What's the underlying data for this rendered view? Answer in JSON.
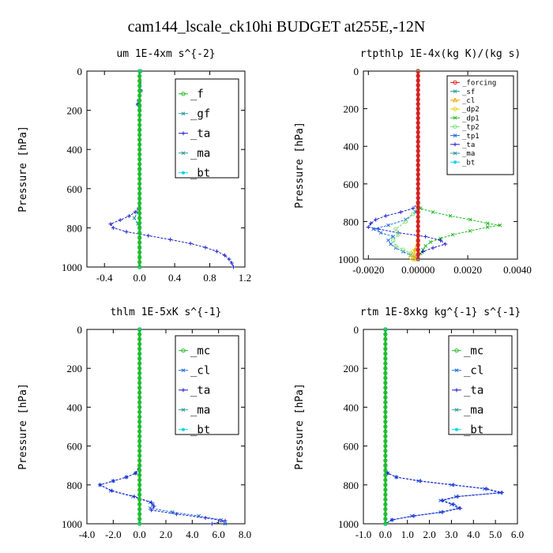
{
  "figure_title": "cam144_lscale_ck10hi  BUDGET at255E,-12N",
  "colors": {
    "green": "#22bb22",
    "teal": "#2a9a9a",
    "blue": "#1f6fe0",
    "darkblue": "#2222cc",
    "cyan": "#00d8e8",
    "red": "#e01818",
    "orange": "#f0a000",
    "yellow": "#e0d000",
    "lightgreen": "#7de07d"
  },
  "chart_data": [
    {
      "type": "line",
      "title": "um   1E-4xm s^{-2}",
      "ylabel": "Pressure [hPa]",
      "xlim": [
        -0.6,
        1.2
      ],
      "ylim": [
        0,
        1000
      ],
      "xticks": [
        -0.4,
        0.0,
        0.4,
        0.8,
        1.2
      ],
      "xtick_labels": [
        "-0.4",
        "0.0",
        "0.4",
        "0.8",
        "1.2"
      ],
      "yticks": [
        0,
        200,
        400,
        600,
        800,
        1000
      ],
      "ytick_labels": [
        "0",
        "200",
        "400",
        "600",
        "800",
        "1000"
      ],
      "legend": {
        "position": "top-right",
        "entries": [
          "_f",
          "_gf",
          "_ta",
          "_ma",
          "_bt"
        ]
      },
      "series": [
        {
          "name": "_gf",
          "color": "teal",
          "marker": "x",
          "width": 1.2,
          "y": [
            0,
            100,
            150,
            170,
            180,
            200,
            300,
            500,
            700,
            720,
            750,
            780,
            800,
            850,
            900,
            950,
            1000
          ],
          "x": [
            0.01,
            0.015,
            -0.01,
            -0.02,
            0.0,
            0.0,
            0.0,
            0.0,
            0.0,
            -0.02,
            -0.06,
            -0.02,
            0.0,
            0.0,
            0.0,
            0.0,
            0.0
          ]
        },
        {
          "name": "_ta",
          "color": "darkblue",
          "marker": "+",
          "width": 1.0,
          "y": [
            0,
            100,
            150,
            170,
            180,
            200,
            300,
            500,
            700,
            720,
            740,
            760,
            780,
            800,
            820,
            840,
            860,
            880,
            900,
            920,
            940,
            960,
            980,
            1000
          ],
          "x": [
            0.01,
            0.015,
            -0.01,
            -0.02,
            0.0,
            0.0,
            0.0,
            0.0,
            -0.01,
            -0.05,
            -0.12,
            -0.22,
            -0.33,
            -0.3,
            -0.15,
            0.1,
            0.35,
            0.58,
            0.75,
            0.88,
            0.97,
            1.02,
            1.05,
            1.07
          ]
        },
        {
          "name": "_bt",
          "color": "cyan",
          "marker": "dot",
          "width": 1.0,
          "y": [
            0,
            1000
          ],
          "x": [
            0.0,
            0.0
          ]
        },
        {
          "name": "_f",
          "color": "green",
          "marker": "o",
          "width": 2.6,
          "y": [
            0,
            1000
          ],
          "x": [
            0.0,
            0.0
          ]
        }
      ]
    },
    {
      "type": "line",
      "title": "rtpthlp   1E-4x(kg K)/(kg s)",
      "ylabel": "Pressure [hPa]",
      "xlim": [
        -0.0022,
        0.004
      ],
      "ylim": [
        0,
        1000
      ],
      "xticks": [
        -0.002,
        0.0,
        0.002,
        0.004
      ],
      "xtick_labels": [
        "-0.0020",
        "0.00000",
        "0.0020",
        "0.0040"
      ],
      "yticks": [
        0,
        200,
        400,
        600,
        800,
        1000
      ],
      "ytick_labels": [
        "0",
        "200",
        "400",
        "600",
        "800",
        "1000"
      ],
      "legend": {
        "position": "top-right",
        "entries": [
          "_forcing",
          "_sf",
          "_cl",
          "_dp2",
          "_dp1",
          "_tp2",
          "_tp1",
          "_ta",
          "_ma",
          "_bt"
        ]
      },
      "series": [
        {
          "name": "_dp1",
          "color": "green",
          "marker": "x",
          "width": 1.0,
          "y": [
            0,
            700,
            730,
            750,
            770,
            790,
            810,
            820,
            830,
            850,
            870,
            890,
            910,
            930,
            950,
            970,
            990,
            1000
          ],
          "x": [
            0.0,
            0.0,
            0.0001,
            0.0006,
            0.0013,
            0.0021,
            0.0028,
            0.0033,
            0.0028,
            0.0021,
            0.0014,
            0.0009,
            0.0005,
            0.0003,
            0.0002,
            0.0001,
            0.0,
            0.0
          ]
        },
        {
          "name": "_ta",
          "color": "darkblue",
          "marker": "+",
          "width": 1.0,
          "y": [
            0,
            700,
            730,
            750,
            770,
            790,
            810,
            830,
            840,
            860,
            880,
            900,
            920,
            940,
            960,
            980,
            1000
          ],
          "x": [
            0.0,
            0.0,
            -0.0002,
            -0.0007,
            -0.0013,
            -0.0017,
            -0.0019,
            -0.002,
            -0.0016,
            -0.0008,
            0.0003,
            0.0009,
            0.0011,
            0.0006,
            0.0002,
            0.0,
            0.0
          ]
        },
        {
          "name": "_tp1",
          "color": "blue",
          "marker": "x",
          "width": 1.0,
          "y": [
            0,
            700,
            750,
            790,
            820,
            840,
            860,
            880,
            900,
            920,
            940,
            960,
            980,
            1000
          ],
          "x": [
            0.0,
            0.0,
            -0.0001,
            -0.0005,
            -0.0012,
            -0.0018,
            -0.0015,
            -0.001,
            -0.0012,
            -0.0011,
            -0.0009,
            -0.0006,
            -0.0003,
            0.0
          ]
        },
        {
          "name": "_tp2",
          "color": "lightgreen",
          "marker": "o",
          "width": 1.2,
          "y": [
            0,
            720,
            760,
            800,
            840,
            870,
            900,
            930,
            950,
            970,
            990,
            1000
          ],
          "x": [
            0.0,
            0.0,
            -0.0002,
            -0.0005,
            -0.0009,
            -0.0008,
            -0.001,
            -0.0009,
            -0.0006,
            -0.0003,
            -0.0001,
            0.0
          ]
        },
        {
          "name": "_cl",
          "color": "orange",
          "marker": "^",
          "width": 1.0,
          "y": [
            0,
            900,
            950,
            980,
            1000
          ],
          "x": [
            0.0,
            0.0,
            -0.0001,
            -0.00015,
            -0.0001
          ]
        },
        {
          "name": "_dp2",
          "color": "yellow",
          "marker": "o",
          "width": 1.0,
          "y": [
            0,
            900,
            960,
            990,
            1000
          ],
          "x": [
            0.0,
            0.0,
            -0.0002,
            -0.0003,
            -0.0002
          ]
        },
        {
          "name": "_bt",
          "color": "cyan",
          "marker": "dot",
          "width": 1.0,
          "y": [
            0,
            1000
          ],
          "x": [
            0.0,
            0.0
          ]
        },
        {
          "name": "_forcing",
          "color": "red",
          "marker": "o",
          "width": 3.0,
          "y": [
            0,
            1000
          ],
          "x": [
            0.0,
            0.0
          ]
        }
      ]
    },
    {
      "type": "line",
      "title": "thlm   1E-5xK s^{-1}",
      "ylabel": "Pressure [hPa]",
      "xlim": [
        -4.0,
        8.0
      ],
      "ylim": [
        0,
        1000
      ],
      "xticks": [
        -4,
        -2,
        0,
        2,
        4,
        6,
        8
      ],
      "xtick_labels": [
        "-4.0",
        "-2.0",
        "0.0",
        "2.0",
        "4.0",
        "6.0",
        "8.0"
      ],
      "yticks": [
        0,
        200,
        400,
        600,
        800,
        1000
      ],
      "ytick_labels": [
        "0",
        "200",
        "400",
        "600",
        "800",
        "1000"
      ],
      "legend": {
        "position": "top-right",
        "entries": [
          "_mc",
          "_cl",
          "_ta",
          "_ma",
          "_bt"
        ]
      },
      "series": [
        {
          "name": "_cl",
          "color": "blue",
          "marker": "x",
          "width": 1.0,
          "y": [
            0,
            700,
            740,
            760,
            780,
            800,
            830,
            860,
            890,
            900,
            920,
            940,
            960,
            980,
            1000
          ],
          "x": [
            0.0,
            0.0,
            -0.3,
            -1.0,
            -2.0,
            -3.0,
            -2.2,
            -0.5,
            0.8,
            1.0,
            0.8,
            2.5,
            4.5,
            6.2,
            6.5
          ]
        },
        {
          "name": "_ta",
          "color": "darkblue",
          "marker": "+",
          "width": 1.0,
          "y": [
            0,
            700,
            740,
            760,
            780,
            800,
            830,
            860,
            890,
            910,
            930,
            950,
            970,
            985,
            1000
          ],
          "x": [
            0.0,
            0.0,
            -0.3,
            -1.0,
            -2.0,
            -3.0,
            -2.1,
            -0.4,
            0.9,
            1.1,
            0.9,
            2.8,
            5.0,
            6.5,
            5.5
          ]
        },
        {
          "name": "_bt",
          "color": "cyan",
          "marker": "dot",
          "width": 1.0,
          "y": [
            0,
            1000
          ],
          "x": [
            0.0,
            0.0
          ]
        },
        {
          "name": "_mc",
          "color": "green",
          "marker": "o",
          "width": 2.6,
          "y": [
            0,
            1000
          ],
          "x": [
            0.0,
            0.0
          ]
        }
      ]
    },
    {
      "type": "line",
      "title": "rtm   1E-8xkg kg^{-1} s^{-1}",
      "ylabel": "Pressure [hPa]",
      "xlim": [
        -1.0,
        6.0
      ],
      "ylim": [
        0,
        1000
      ],
      "xticks": [
        -1,
        0,
        1,
        2,
        3,
        4,
        5,
        6
      ],
      "xtick_labels": [
        "-1.0",
        "0.0",
        "1.0",
        "2.0",
        "3.0",
        "4.0",
        "5.0",
        "6.0"
      ],
      "yticks": [
        0,
        200,
        400,
        600,
        800,
        1000
      ],
      "ytick_labels": [
        "0",
        "200",
        "400",
        "600",
        "800",
        "1000"
      ],
      "legend": {
        "position": "top-right",
        "entries": [
          "_mc",
          "_cl",
          "_ta",
          "_ma",
          "_bt"
        ]
      },
      "series": [
        {
          "name": "_cl",
          "color": "blue",
          "marker": "x",
          "width": 1.0,
          "y": [
            0,
            700,
            740,
            760,
            780,
            800,
            820,
            840,
            860,
            880,
            900,
            920,
            940,
            960,
            980,
            1000
          ],
          "x": [
            0.0,
            0.0,
            0.1,
            0.5,
            1.5,
            3.0,
            4.5,
            5.2,
            3.2,
            2.5,
            3.0,
            3.3,
            2.5,
            1.2,
            0.3,
            0.0
          ]
        },
        {
          "name": "_ta",
          "color": "darkblue",
          "marker": "+",
          "width": 1.0,
          "y": [
            0,
            700,
            740,
            760,
            780,
            800,
            820,
            840,
            860,
            880,
            900,
            920,
            940,
            960,
            980,
            1000
          ],
          "x": [
            0.0,
            0.0,
            0.1,
            0.5,
            1.6,
            3.1,
            4.6,
            5.3,
            3.3,
            2.6,
            3.1,
            3.4,
            2.6,
            1.3,
            0.3,
            0.0
          ]
        },
        {
          "name": "_bt",
          "color": "cyan",
          "marker": "dot",
          "width": 1.0,
          "y": [
            0,
            1000
          ],
          "x": [
            0.0,
            0.0
          ]
        },
        {
          "name": "_mc",
          "color": "green",
          "marker": "o",
          "width": 2.6,
          "y": [
            0,
            1000
          ],
          "x": [
            0.0,
            0.0
          ]
        }
      ]
    }
  ]
}
